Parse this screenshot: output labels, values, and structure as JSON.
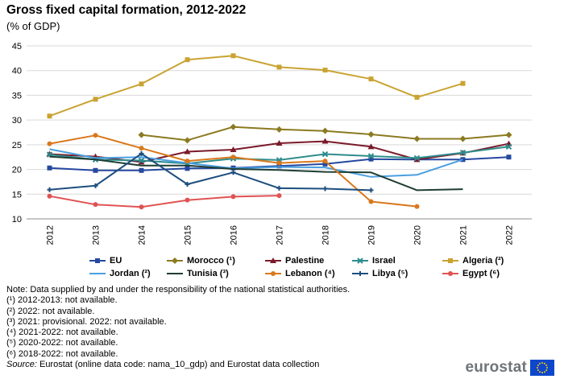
{
  "chart_data": {
    "type": "line",
    "title": "Gross fixed capital formation, 2012-2022",
    "subtitle": "(% of GDP)",
    "x": [
      "2012",
      "2013",
      "2014",
      "2015",
      "2016",
      "2017",
      "2018",
      "2019",
      "2020",
      "2021",
      "2022"
    ],
    "ylim": [
      10,
      45
    ],
    "yticks": [
      10,
      15,
      20,
      25,
      30,
      35,
      40,
      45
    ],
    "grid": true,
    "legend_position": "bottom",
    "series": [
      {
        "name": "EU",
        "color": "#2548a0",
        "marker": "square",
        "values": [
          20.3,
          19.8,
          19.8,
          20.2,
          20.3,
          20.7,
          21.1,
          22.1,
          22.0,
          22.0,
          22.5
        ]
      },
      {
        "name": "Morocco (¹)",
        "color": "#8b7a20",
        "marker": "diamond",
        "values": [
          null,
          null,
          27.0,
          25.9,
          28.6,
          28.1,
          27.8,
          27.1,
          26.2,
          26.2,
          27.0
        ]
      },
      {
        "name": "Palestine",
        "color": "#7a1a2a",
        "marker": "triangle",
        "values": [
          23.1,
          22.6,
          21.5,
          23.6,
          24.0,
          25.3,
          25.7,
          24.6,
          22.0,
          23.3,
          25.2
        ]
      },
      {
        "name": "Israel",
        "color": "#2e8c8c",
        "marker": "x",
        "values": [
          23.0,
          22.0,
          21.8,
          21.2,
          22.2,
          21.9,
          23.1,
          22.7,
          22.3,
          23.4,
          24.6
        ]
      },
      {
        "name": "Algeria (²)",
        "color": "#c9a332",
        "marker": "square",
        "values": [
          30.8,
          34.2,
          37.3,
          42.2,
          43.0,
          40.7,
          40.1,
          38.3,
          34.6,
          37.4,
          null
        ]
      },
      {
        "name": "Jordan (²)",
        "color": "#4a9fe0",
        "marker": "none",
        "values": [
          24.1,
          22.3,
          22.5,
          21.3,
          20.2,
          20.5,
          20.4,
          18.5,
          18.9,
          22.0,
          null
        ]
      },
      {
        "name": "Tunisia (³)",
        "color": "#1f3d33",
        "marker": "none",
        "values": [
          22.6,
          22.0,
          20.8,
          20.8,
          20.1,
          19.9,
          19.5,
          19.4,
          15.8,
          16.0,
          null
        ]
      },
      {
        "name": "Lebanon (⁴)",
        "color": "#d9781c",
        "marker": "circle",
        "values": [
          25.2,
          26.9,
          24.3,
          21.7,
          22.5,
          21.3,
          21.7,
          13.5,
          12.5,
          null,
          null
        ]
      },
      {
        "name": "Libya (⁵)",
        "color": "#1d4e7e",
        "marker": "plus",
        "values": [
          15.9,
          16.7,
          23.2,
          17.0,
          19.4,
          16.2,
          16.1,
          15.8,
          null,
          null,
          null
        ]
      },
      {
        "name": "Egypt (⁶)",
        "color": "#e05252",
        "marker": "circle",
        "values": [
          14.6,
          12.9,
          12.4,
          13.8,
          14.5,
          14.7,
          null,
          null,
          null,
          null,
          null
        ]
      }
    ]
  },
  "notes": [
    "Note: Data supplied by and under the responsibility of the national statistical authorities.",
    "(¹) 2012-2013: not available.",
    "(²) 2022: not available.",
    "(³) 2021: provisional. 2022: not available.",
    "(⁴) 2021-2022: not available.",
    "(⁵) 2020-2022: not available.",
    "(⁶) 2018-2022: not available."
  ],
  "source": {
    "label": "Source:",
    "text": " Eurostat (online data code: nama_10_gdp) and Eurostat data collection"
  },
  "logo": {
    "text": "eurostat",
    "flag_color": "#0e47cb",
    "star_color": "#ffcc00"
  }
}
